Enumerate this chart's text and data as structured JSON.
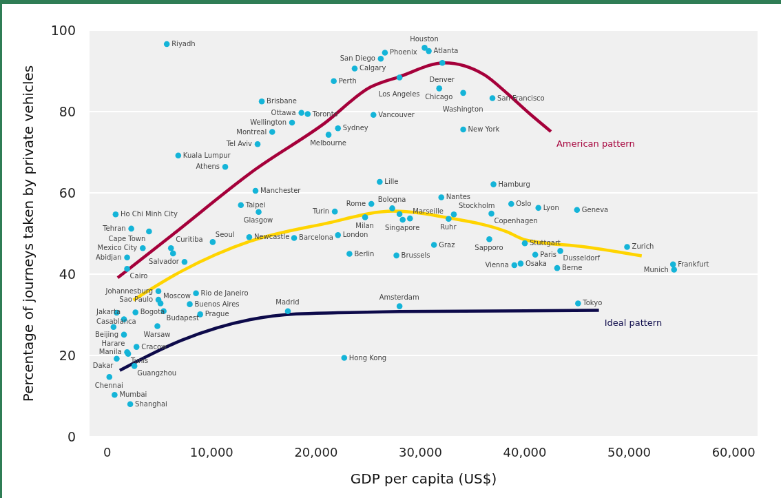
{
  "chart_data": {
    "type": "scatter",
    "xlabel": "GDP per capita (US$)",
    "ylabel": "Percentage of journeys taken by private vehicles",
    "xlim": [
      -1700,
      62300
    ],
    "ylim": [
      0,
      100
    ],
    "xticks": [
      0,
      {
        "value": 10000,
        "label": "10,000"
      },
      {
        "value": 20000,
        "label": "20,000"
      },
      {
        "value": 30000,
        "label": "30,000"
      },
      {
        "value": 40000,
        "label": "40,000"
      },
      {
        "value": 50000,
        "label": "50,000"
      },
      {
        "value": 60000,
        "label": "60,000"
      }
    ],
    "yticks": [
      0,
      20,
      40,
      60,
      80,
      100
    ],
    "grid": "y",
    "series": [
      {
        "color": "#14b4d8",
        "x": [
          5700,
          14800,
          18600,
          19200,
          17700,
          15800,
          14400,
          6800,
          11300,
          14200,
          12800,
          14500,
          800,
          2300,
          4000,
          21700,
          22100,
          21200,
          26600,
          26200,
          30400,
          30800,
          32100,
          23700,
          28000,
          31800,
          34100,
          36900,
          25500,
          34100,
          26100,
          32000,
          37000,
          25300,
          27300,
          28000,
          28300,
          29000,
          21800,
          24700,
          32700,
          33200,
          36800,
          38700,
          41300,
          45000,
          3400,
          1900,
          1900,
          6100,
          6300,
          10100,
          13600,
          17900,
          7400,
          4900,
          4900,
          5100,
          8500,
          7900,
          900,
          2700,
          5400,
          8900,
          1600,
          600,
          4800,
          1600,
          2800,
          1900,
          2000,
          900,
          2600,
          200,
          700,
          2200,
          17300,
          22100,
          23200,
          27700,
          31300,
          36600,
          40000,
          41000,
          39000,
          39600,
          43100,
          43400,
          28000,
          22700,
          45100,
          49800,
          54200,
          54300
        ],
        "values": [
          96.6,
          82.5,
          79.7,
          79.4,
          77.3,
          75.0,
          72.0,
          69.2,
          66.4,
          60.5,
          57.0,
          55.3,
          54.7,
          51.2,
          50.5,
          87.5,
          75.9,
          74.3,
          94.5,
          93.0,
          95.7,
          94.9,
          92.0,
          90.6,
          88.4,
          85.7,
          84.6,
          83.3,
          79.2,
          75.6,
          62.7,
          58.9,
          62.1,
          57.3,
          56.2,
          54.8,
          53.4,
          53.7,
          55.4,
          54.0,
          53.6,
          54.7,
          54.9,
          57.3,
          56.3,
          55.8,
          46.4,
          44.1,
          41.3,
          46.4,
          45.1,
          47.9,
          49.1,
          48.9,
          43.0,
          35.8,
          33.7,
          32.8,
          35.3,
          32.6,
          30.5,
          30.6,
          30.9,
          30.1,
          28.9,
          27.0,
          27.2,
          25.1,
          22.1,
          20.8,
          20.4,
          19.2,
          17.4,
          14.7,
          10.3,
          8.0,
          30.9,
          49.6,
          45.0,
          44.6,
          47.2,
          48.6,
          47.6,
          44.8,
          42.2,
          42.6,
          41.5,
          45.7,
          32.1,
          19.4,
          32.8,
          46.7,
          42.4,
          41.1
        ],
        "value_labels": [
          "Riyadh",
          "Brisbane",
          "Ottawa",
          "Toronto",
          "Wellington",
          "Montreal",
          "Tel Aviv",
          "Kuala Lumpur",
          "Athens",
          "Manchester",
          "Taipei",
          "Glasgow",
          "Ho Chi Minh City",
          "Tehran",
          "Cape Town",
          "Perth",
          "Sydney",
          "Melbourne",
          "Phoenix",
          "San Diego",
          "Houston",
          "Atlanta",
          "Denver",
          "Calgary",
          "Los Angeles",
          "Chicago",
          "Washington",
          "San Francisco",
          "Vancouver",
          "New York",
          "Lille",
          "Nantes",
          "Hamburg",
          "Rome",
          "Bologna",
          null,
          "Singapore",
          "Marseille",
          "Turin",
          "Milan",
          "Ruhr",
          "Stockholm",
          "Copenhagen",
          "Oslo",
          "Lyon",
          "Geneva",
          "Mexico City",
          "Abidjan",
          "Cairo",
          "Curitiba",
          null,
          "Seoul",
          "Newcastle",
          "Barcelona",
          "Salvador",
          "Johannesburg",
          "Sao Paulo",
          "Moscow",
          "Rio de Janeiro",
          "Buenos Aires",
          "Casablanca",
          "Bogota",
          "Budapest",
          "Prague",
          "Jakarta",
          "Harare",
          "Warsaw",
          "Beijing",
          "Cracow",
          "Manila",
          "Tunis",
          "Dakar",
          "Guangzhou",
          "Chennai",
          "Mumbai",
          "Shanghai",
          "Madrid",
          "London",
          "Berlin",
          "Brussels",
          "Graz",
          "Sapporo",
          "Stuttgart",
          "Paris",
          "Vienna",
          "Osaka",
          "Berne",
          "Dusseldorf",
          "Amsterdam",
          "Hong Kong",
          "Tokyo",
          "Zurich",
          "Frankfurt",
          "Munich"
        ]
      },
      {
        "type": "line",
        "name": "American pattern",
        "color": "#a5003a",
        "x": [
          1000,
          6300,
          14200,
          20800,
          25200,
          28000,
          32300,
          36100,
          38300,
          40500,
          42500
        ],
        "values": [
          39.1,
          49.8,
          65.8,
          77.1,
          86.0,
          88.6,
          92.0,
          89.1,
          84.5,
          79.4,
          75.1
        ]
      },
      {
        "type": "line",
        "color": "#ffd400",
        "x": [
          2500,
          7100,
          13700,
          20800,
          27400,
          32800,
          38300,
          40100,
          45800,
          51200
        ],
        "values": [
          33.6,
          40.7,
          48.1,
          52.4,
          55.5,
          53.8,
          50.4,
          48.4,
          46.7,
          44.5
        ]
      },
      {
        "type": "line",
        "name": "Ideal pattern",
        "color": "#0d0a4a",
        "x": [
          1200,
          7100,
          13700,
          18100,
          22100,
          28000,
          47100
        ],
        "values": [
          16.3,
          23.7,
          28.8,
          30.2,
          30.5,
          30.8,
          31.1
        ]
      }
    ]
  }
}
